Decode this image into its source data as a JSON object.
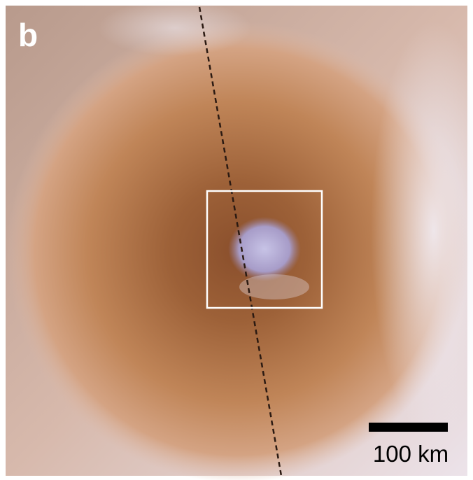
{
  "panel_label": "b",
  "scale_bar": {
    "label": "100 km"
  }
}
